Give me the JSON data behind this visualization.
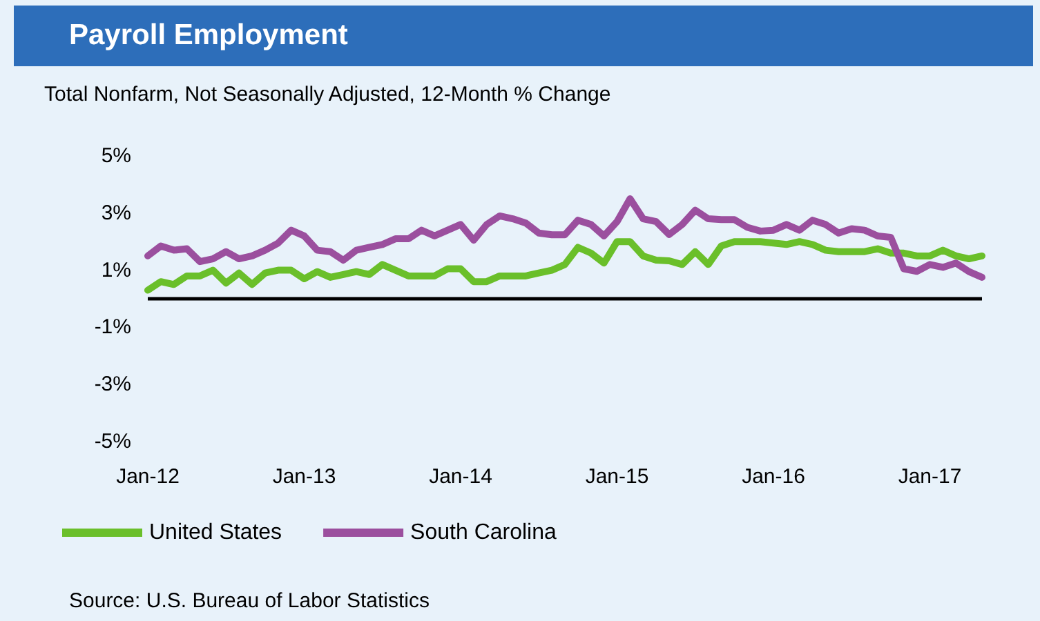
{
  "chart_data": {
    "type": "line",
    "title": "Payroll Employment",
    "subtitle": "Total Nonfarm, Not Seasonally Adjusted, 12-Month % Change",
    "categories": [
      "Jan-12",
      null,
      null,
      null,
      null,
      null,
      null,
      null,
      null,
      null,
      null,
      null,
      "Jan-13",
      null,
      null,
      null,
      null,
      null,
      null,
      null,
      null,
      null,
      null,
      null,
      "Jan-14",
      null,
      null,
      null,
      null,
      null,
      null,
      null,
      null,
      null,
      null,
      null,
      "Jan-15",
      null,
      null,
      null,
      null,
      null,
      null,
      null,
      null,
      null,
      null,
      null,
      "Jan-16",
      null,
      null,
      null,
      null,
      null,
      null,
      null,
      null,
      null,
      null,
      null,
      "Jan-17",
      null,
      null,
      null,
      null
    ],
    "series": [
      {
        "name": "United States",
        "color": "#6abf2a",
        "values": [
          0.3,
          0.6,
          0.5,
          0.8,
          0.8,
          1.0,
          0.55,
          0.9,
          0.5,
          0.9,
          1.0,
          1.0,
          0.7,
          0.95,
          0.75,
          0.85,
          0.95,
          0.85,
          1.2,
          1.0,
          0.8,
          0.8,
          0.8,
          1.05,
          1.05,
          0.6,
          0.6,
          0.8,
          0.8,
          0.8,
          0.9,
          1.0,
          1.2,
          1.8,
          1.6,
          1.25,
          2.0,
          2.0,
          1.5,
          1.35,
          1.33,
          1.2,
          1.65,
          1.2,
          1.85,
          2.0,
          2.0,
          2.0,
          1.95,
          1.9,
          2.0,
          1.9,
          1.7,
          1.65,
          1.65,
          1.65,
          1.75,
          1.6,
          1.6,
          1.5,
          1.5,
          1.7,
          1.5,
          1.4,
          1.5
        ]
      },
      {
        "name": "South Carolina",
        "color": "#9b4f9e",
        "values": [
          1.5,
          1.85,
          1.7,
          1.75,
          1.3,
          1.4,
          1.65,
          1.4,
          1.5,
          1.7,
          1.95,
          2.4,
          2.2,
          1.7,
          1.65,
          1.35,
          1.7,
          1.8,
          1.9,
          2.1,
          2.1,
          2.4,
          2.2,
          2.4,
          2.6,
          2.05,
          2.6,
          2.9,
          2.8,
          2.65,
          2.3,
          2.24,
          2.24,
          2.75,
          2.6,
          2.2,
          2.7,
          3.5,
          2.8,
          2.7,
          2.25,
          2.6,
          3.1,
          2.8,
          2.77,
          2.77,
          2.5,
          2.37,
          2.4,
          2.6,
          2.4,
          2.75,
          2.6,
          2.3,
          2.45,
          2.4,
          2.2,
          2.15,
          1.05,
          0.96,
          1.2,
          1.1,
          1.25,
          0.95,
          0.75
        ]
      }
    ],
    "ylim": [
      -5,
      5
    ],
    "yticks": [
      {
        "value": -5,
        "label": "-5%"
      },
      {
        "value": -3,
        "label": "-3%"
      },
      {
        "value": -1,
        "label": "-1%"
      },
      {
        "value": 1,
        "label": "1%"
      },
      {
        "value": 3,
        "label": "3%"
      },
      {
        "value": 5,
        "label": "5%"
      }
    ],
    "ref_lines": [
      {
        "axis": "y",
        "value": 0,
        "color": "#000000"
      }
    ],
    "grid": false,
    "legend": "bottom left",
    "marker": "none",
    "line_style": "solid",
    "annotations": [
      "Source: U.S. Bureau of Labor Statistics"
    ]
  }
}
